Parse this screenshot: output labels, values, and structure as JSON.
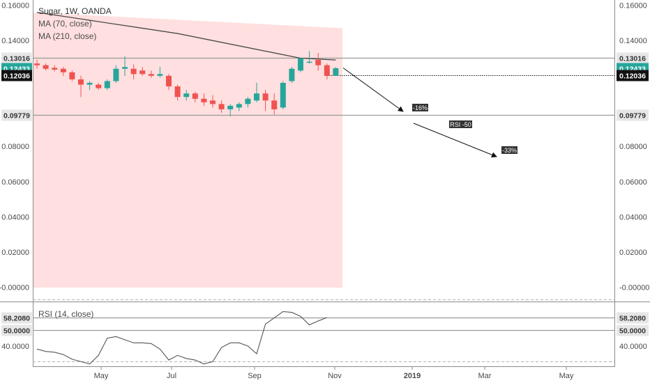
{
  "chart_data": [
    {
      "type": "candlestick",
      "title": "Sugar, 1W, OANDA",
      "indicators": [
        "MA (70, close)",
        "MA (210, close)"
      ],
      "ylim": [
        -0.008,
        0.163
      ],
      "y_ticks": [
        "0.16000",
        "0.14000",
        "0.08000",
        "0.06000",
        "0.04000",
        "0.02000",
        "-0.00000"
      ],
      "x_ticks": [
        "May",
        "Jul",
        "Sep",
        "Nov",
        "2019",
        "Mar",
        "May"
      ],
      "price_levels": [
        {
          "label": "0.13016",
          "value": 0.13016,
          "style": "line-gray"
        },
        {
          "label": "0.12433",
          "value": 0.12433,
          "style": "badge-teal"
        },
        {
          "label": "0.12036",
          "value": 0.12036,
          "style": "badge-black-dotted"
        },
        {
          "label": "0.09779",
          "value": 0.09779,
          "style": "line-gray"
        }
      ],
      "candles": [
        {
          "o": 0.127,
          "h": 0.129,
          "l": 0.124,
          "c": 0.126
        },
        {
          "o": 0.126,
          "h": 0.127,
          "l": 0.123,
          "c": 0.124
        },
        {
          "o": 0.1245,
          "h": 0.126,
          "l": 0.1225,
          "c": 0.1235
        },
        {
          "o": 0.124,
          "h": 0.125,
          "l": 0.12,
          "c": 0.122
        },
        {
          "o": 0.122,
          "h": 0.123,
          "l": 0.117,
          "c": 0.118
        },
        {
          "o": 0.118,
          "h": 0.12,
          "l": 0.108,
          "c": 0.115
        },
        {
          "o": 0.115,
          "h": 0.117,
          "l": 0.112,
          "c": 0.116
        },
        {
          "o": 0.115,
          "h": 0.116,
          "l": 0.112,
          "c": 0.113
        },
        {
          "o": 0.113,
          "h": 0.118,
          "l": 0.112,
          "c": 0.117
        },
        {
          "o": 0.117,
          "h": 0.126,
          "l": 0.116,
          "c": 0.124
        },
        {
          "o": 0.124,
          "h": 0.131,
          "l": 0.12,
          "c": 0.125
        },
        {
          "o": 0.124,
          "h": 0.1265,
          "l": 0.118,
          "c": 0.121
        },
        {
          "o": 0.123,
          "h": 0.125,
          "l": 0.12,
          "c": 0.121
        },
        {
          "o": 0.121,
          "h": 0.123,
          "l": 0.119,
          "c": 0.12
        },
        {
          "o": 0.12,
          "h": 0.125,
          "l": 0.119,
          "c": 0.121
        },
        {
          "o": 0.12,
          "h": 0.121,
          "l": 0.112,
          "c": 0.114
        },
        {
          "o": 0.114,
          "h": 0.115,
          "l": 0.106,
          "c": 0.108
        },
        {
          "o": 0.108,
          "h": 0.112,
          "l": 0.106,
          "c": 0.11
        },
        {
          "o": 0.11,
          "h": 0.111,
          "l": 0.105,
          "c": 0.107
        },
        {
          "o": 0.107,
          "h": 0.11,
          "l": 0.103,
          "c": 0.105
        },
        {
          "o": 0.106,
          "h": 0.109,
          "l": 0.102,
          "c": 0.104
        },
        {
          "o": 0.104,
          "h": 0.106,
          "l": 0.099,
          "c": 0.101
        },
        {
          "o": 0.101,
          "h": 0.104,
          "l": 0.097,
          "c": 0.103
        },
        {
          "o": 0.102,
          "h": 0.105,
          "l": 0.1,
          "c": 0.104
        },
        {
          "o": 0.104,
          "h": 0.108,
          "l": 0.102,
          "c": 0.107
        },
        {
          "o": 0.106,
          "h": 0.116,
          "l": 0.105,
          "c": 0.11
        },
        {
          "o": 0.11,
          "h": 0.112,
          "l": 0.1,
          "c": 0.106
        },
        {
          "o": 0.106,
          "h": 0.11,
          "l": 0.098,
          "c": 0.101
        },
        {
          "o": 0.102,
          "h": 0.117,
          "l": 0.101,
          "c": 0.116
        },
        {
          "o": 0.117,
          "h": 0.125,
          "l": 0.116,
          "c": 0.124
        },
        {
          "o": 0.123,
          "h": 0.13,
          "l": 0.122,
          "c": 0.13
        },
        {
          "o": 0.128,
          "h": 0.134,
          "l": 0.127,
          "c": 0.128
        },
        {
          "o": 0.129,
          "h": 0.133,
          "l": 0.123,
          "c": 0.126
        },
        {
          "o": 0.126,
          "h": 0.127,
          "l": 0.118,
          "c": 0.12
        },
        {
          "o": 0.12,
          "h": 0.125,
          "l": 0.12,
          "c": 0.1243
        }
      ],
      "ma70": [
        {
          "x": 0,
          "y": 0.156
        },
        {
          "x": 4,
          "y": 0.153
        },
        {
          "x": 8,
          "y": 0.15
        },
        {
          "x": 12,
          "y": 0.147
        },
        {
          "x": 16,
          "y": 0.144
        },
        {
          "x": 20,
          "y": 0.14
        },
        {
          "x": 24,
          "y": 0.136
        },
        {
          "x": 28,
          "y": 0.132
        },
        {
          "x": 30,
          "y": 0.13
        },
        {
          "x": 34,
          "y": 0.129
        }
      ],
      "shaded_zone": {
        "from_index": 0,
        "to_index": 34,
        "top_start": 0.156,
        "top_end": 0.147,
        "bottom": -0.0001,
        "color": "#ffdcdc"
      },
      "annotations": [
        {
          "label": "-16%",
          "from": {
            "index": 35,
            "value": 0.1245
          },
          "to": {
            "index": 40,
            "value": 0.099
          }
        },
        {
          "label": "RSI -50",
          "from": {
            "index": 41,
            "value": 0.096
          },
          "to": {
            "index": 50,
            "value": 0.073
          }
        },
        {
          "label": "-33%"
        }
      ]
    },
    {
      "type": "line",
      "title": "RSI (14, close)",
      "ylim": [
        27,
        68
      ],
      "y_ticks": [
        "40.0000"
      ],
      "levels": [
        {
          "label": "58.2080",
          "value": 58.208
        },
        {
          "label": "50.0000",
          "value": 50.0
        }
      ],
      "dashed_levels": [
        70,
        30
      ],
      "values": [
        38,
        36.5,
        36,
        34.5,
        31.5,
        30,
        28.5,
        34,
        45,
        46,
        44,
        42,
        42,
        41.5,
        38,
        31,
        34,
        32,
        31,
        28.5,
        30,
        39,
        42,
        42,
        40,
        35,
        54,
        58,
        62,
        61.5,
        59,
        53.5,
        56,
        58.2
      ]
    }
  ]
}
